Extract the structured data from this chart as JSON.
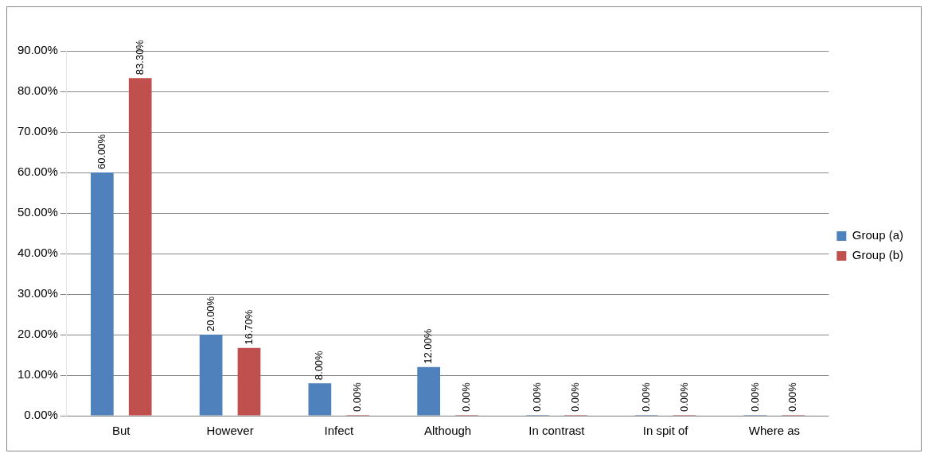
{
  "chart_data": {
    "type": "bar",
    "categories": [
      "But",
      "However",
      "Infect",
      "Although",
      "In contrast",
      "In spit of",
      "Where as"
    ],
    "series": [
      {
        "name": "Group (a)",
        "color": "#4f81bd",
        "values": [
          60,
          20,
          8,
          12,
          0,
          0,
          0
        ],
        "value_labels": [
          "60.00%",
          "20.00%",
          "8.00%",
          "12.00%",
          "0.00%",
          "0.00%",
          "0.00%"
        ]
      },
      {
        "name": "Group (b)",
        "color": "#c0504d",
        "values": [
          83.3,
          16.7,
          0,
          0,
          0,
          0,
          0
        ],
        "value_labels": [
          "83.30%",
          "16.70%",
          "0.00%",
          "0.00%",
          "0.00%",
          "0.00%",
          "0.00%"
        ]
      }
    ],
    "ylim": [
      0,
      90
    ],
    "yticks": [
      {
        "value": 0,
        "label": "0.00%"
      },
      {
        "value": 10,
        "label": "10.00%"
      },
      {
        "value": 20,
        "label": "20.00%"
      },
      {
        "value": 30,
        "label": "30.00%"
      },
      {
        "value": 40,
        "label": "40.00%"
      },
      {
        "value": 50,
        "label": "50.00%"
      },
      {
        "value": 60,
        "label": "60.00%"
      },
      {
        "value": 70,
        "label": "70.00%"
      },
      {
        "value": 80,
        "label": "80.00%"
      },
      {
        "value": 90,
        "label": "90.00%"
      }
    ],
    "grid": "y",
    "legend": "right"
  }
}
